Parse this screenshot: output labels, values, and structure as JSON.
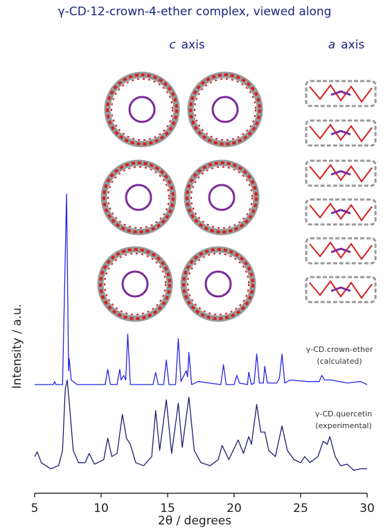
{
  "chart_data": {
    "type": "line",
    "title": "γ-CD·12-crown-4-ether complex, viewed along",
    "view_labels": [
      {
        "letter": "c",
        "word": "axis"
      },
      {
        "letter": "a",
        "word": "axis"
      }
    ],
    "x_label": "2θ / degrees",
    "y_label": "Intensity / a.u.",
    "xlim": [
      5,
      30
    ],
    "xticks": [
      5,
      10,
      15,
      20,
      25,
      30
    ],
    "ylim": [
      0,
      100
    ],
    "annotations": [
      [
        "γ-CD.crown-ether",
        "(calculated)"
      ],
      [
        "γ-CD.quercetin",
        "(experimental)"
      ]
    ],
    "series": [
      {
        "name": "γ-CD.crown-ether",
        "color": "#2424e6",
        "x": [
          5,
          6.4,
          6.5,
          6.6,
          7.1,
          7.4,
          7.55,
          7.6,
          7.75,
          8.2,
          10.3,
          10.5,
          10.7,
          11.2,
          11.4,
          11.5,
          11.7,
          11.85,
          12.0,
          12.2,
          13.9,
          14.1,
          14.3,
          14.7,
          14.9,
          15.1,
          15.6,
          15.8,
          16.0,
          16.4,
          16.5,
          16.6,
          16.8,
          17.3,
          19.0,
          19.2,
          19.4,
          20.0,
          20.2,
          20.4,
          21.0,
          21.1,
          21.3,
          21.5,
          21.7,
          21.9,
          22.2,
          22.3,
          22.5,
          23.2,
          23.4,
          23.6,
          23.8,
          24.2,
          25.5,
          26.4,
          26.6,
          26.8,
          27.3,
          28.5,
          29.5,
          30
        ],
        "values": [
          35.5,
          35.5,
          36.5,
          35.5,
          35.5,
          97.7,
          40,
          44,
          37,
          35.5,
          35.5,
          40.5,
          35.5,
          35.5,
          40.5,
          37,
          38.5,
          37,
          52,
          35.5,
          35.5,
          39.5,
          35.5,
          35.5,
          43.5,
          35.5,
          35.5,
          50.5,
          36.5,
          40,
          38,
          46,
          35.5,
          36.5,
          35.5,
          42,
          35.5,
          35.5,
          38.5,
          36,
          35.5,
          39.5,
          35.5,
          36,
          45.5,
          36,
          36,
          41.5,
          36,
          36,
          37.5,
          45.5,
          36,
          37,
          36.5,
          36.5,
          38.5,
          37,
          37,
          36,
          36.5,
          35.5
        ]
      },
      {
        "name": "γ-CD.quercetin",
        "color": "#1c1c70",
        "x": [
          5,
          5.2,
          5.5,
          6.2,
          6.8,
          7.1,
          7.3,
          7.45,
          7.6,
          7.9,
          8.3,
          8.8,
          9.1,
          9.5,
          10.2,
          10.5,
          10.8,
          11.2,
          11.6,
          11.9,
          12.2,
          12.6,
          13.2,
          13.8,
          14.1,
          14.4,
          14.9,
          15.3,
          15.8,
          16.1,
          16.6,
          17.0,
          17.5,
          18.2,
          18.8,
          19.1,
          19.6,
          20.3,
          20.7,
          21.1,
          21.3,
          21.7,
          22.0,
          22.3,
          22.6,
          23.1,
          23.6,
          24.0,
          24.5,
          25.0,
          25.3,
          25.7,
          26.3,
          26.7,
          27.0,
          27.2,
          27.6,
          28.0,
          28.5,
          29.0,
          29.5,
          30
        ],
        "values": [
          12,
          13.5,
          10,
          8,
          9,
          14,
          34,
          37,
          30,
          14,
          10,
          10,
          13,
          9.5,
          11,
          18,
          12,
          13,
          25.8,
          18,
          16,
          10,
          9,
          12,
          27,
          14,
          30.5,
          13,
          29.4,
          15,
          31.4,
          14,
          10,
          9,
          11,
          15.6,
          11,
          17.4,
          13,
          18.5,
          16,
          29,
          20,
          20,
          14,
          12,
          22,
          14,
          11,
          10,
          12,
          10,
          12,
          17,
          16,
          18.5,
          12,
          9,
          9.5,
          7.5,
          8,
          8
        ]
      }
    ]
  }
}
